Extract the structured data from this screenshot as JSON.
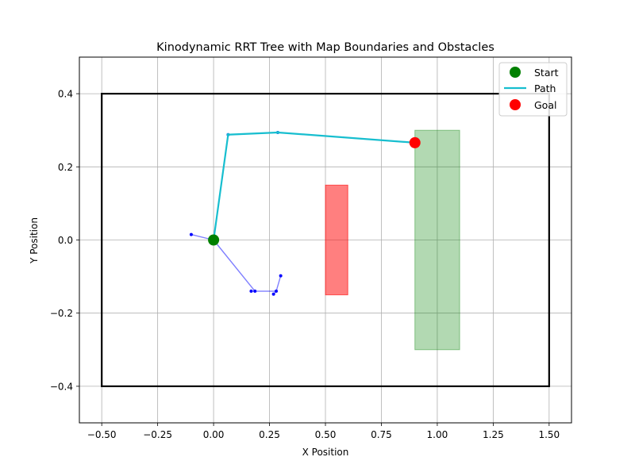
{
  "chart_data": {
    "type": "scatter",
    "title": "Kinodynamic RRT Tree with Map Boundaries and Obstacles",
    "xlabel": "X Position",
    "ylabel": "Y Position",
    "xlim": [
      -0.6,
      1.6
    ],
    "ylim": [
      -0.5,
      0.5
    ],
    "grid": true,
    "legend_position": "top-right",
    "x_ticks": [
      -0.5,
      -0.25,
      0.0,
      0.25,
      0.5,
      0.75,
      1.0,
      1.25,
      1.5
    ],
    "x_tick_labels": [
      "−0.50",
      "−0.25",
      "0.00",
      "0.25",
      "0.50",
      "0.75",
      "1.00",
      "1.25",
      "1.50"
    ],
    "y_ticks": [
      -0.4,
      -0.2,
      0.0,
      0.2,
      0.4
    ],
    "y_tick_labels": [
      "−0.4",
      "−0.2",
      "0.0",
      "0.2",
      "0.4"
    ],
    "boundary": {
      "x": [
        -0.5,
        1.5
      ],
      "y": [
        -0.4,
        0.4
      ],
      "color": "#000000"
    },
    "obstacles": [
      {
        "x": [
          0.5,
          0.6
        ],
        "y": [
          -0.15,
          0.15
        ],
        "color": "#ff0000",
        "opacity": 0.5
      },
      {
        "x": [
          0.9,
          1.1
        ],
        "y": [
          -0.3,
          0.3
        ],
        "color": "#008000",
        "opacity": 0.3
      }
    ],
    "tree": {
      "color": "#0000ff",
      "edges": [
        [
          [
            0.0,
            0.0
          ],
          [
            -0.1,
            0.015
          ]
        ],
        [
          [
            0.0,
            0.0
          ],
          [
            0.0,
            0.0
          ]
        ],
        [
          [
            0.0,
            0.0
          ],
          [
            0.185,
            -0.14
          ]
        ],
        [
          [
            0.185,
            -0.14
          ],
          [
            0.168,
            -0.14
          ]
        ],
        [
          [
            0.185,
            -0.14
          ],
          [
            0.28,
            -0.14
          ]
        ],
        [
          [
            0.28,
            -0.14
          ],
          [
            0.268,
            -0.148
          ]
        ],
        [
          [
            0.28,
            -0.14
          ],
          [
            0.3,
            -0.098
          ]
        ],
        [
          [
            0.0,
            0.0
          ],
          [
            0.065,
            0.288
          ]
        ],
        [
          [
            0.065,
            0.288
          ],
          [
            0.287,
            0.294
          ]
        ],
        [
          [
            0.287,
            0.294
          ],
          [
            0.9,
            0.266
          ]
        ]
      ],
      "nodes": [
        [
          -0.1,
          0.015
        ],
        [
          0.0,
          0.0
        ],
        [
          0.185,
          -0.14
        ],
        [
          0.168,
          -0.14
        ],
        [
          0.28,
          -0.14
        ],
        [
          0.268,
          -0.148
        ],
        [
          0.3,
          -0.098
        ],
        [
          0.065,
          0.288
        ],
        [
          0.287,
          0.294
        ]
      ]
    },
    "path": {
      "name": "Path",
      "color": "#17becf",
      "x": [
        0.0,
        0.065,
        0.287,
        0.9
      ],
      "y": [
        0.0,
        0.288,
        0.294,
        0.266
      ]
    },
    "start": {
      "name": "Start",
      "x": 0.0,
      "y": 0.0,
      "color": "#008000"
    },
    "goal": {
      "name": "Goal",
      "x": 0.9,
      "y": 0.266,
      "color": "#ff0000"
    },
    "legend": [
      "Start",
      "Path",
      "Goal"
    ]
  }
}
